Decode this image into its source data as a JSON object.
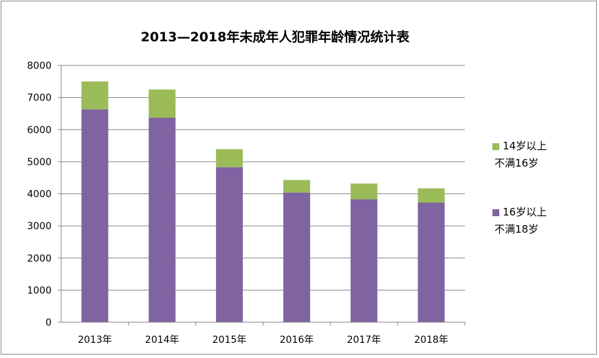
{
  "chart_data": {
    "type": "bar",
    "stacked": true,
    "title": "2013—2018年未成年人犯罪年龄情况统计表",
    "xlabel": "",
    "ylabel": "",
    "categories": [
      "2013年",
      "2014年",
      "2015年",
      "2016年",
      "2017年",
      "2018年"
    ],
    "series": [
      {
        "name": "16岁以上不满18岁",
        "name_lines": [
          "16岁以上",
          "不满18岁"
        ],
        "color": "#8064a2",
        "values": [
          6630,
          6370,
          4830,
          4040,
          3830,
          3730
        ]
      },
      {
        "name": "14岁以上不满16岁",
        "name_lines": [
          "14岁以上",
          "不满16岁"
        ],
        "color": "#9bbb59",
        "values": [
          870,
          880,
          560,
          390,
          490,
          440
        ]
      }
    ],
    "ylim": [
      0,
      8000
    ],
    "yticks": [
      0,
      1000,
      2000,
      3000,
      4000,
      5000,
      6000,
      7000,
      8000
    ],
    "grid": true,
    "legend_position": "right"
  }
}
